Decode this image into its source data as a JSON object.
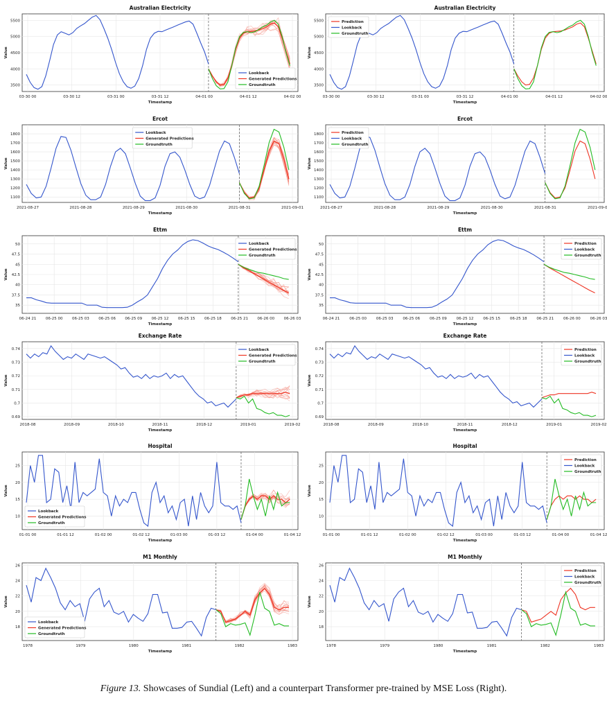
{
  "caption": {
    "label": "Figure 13.",
    "text": "Showcases of Sundial (Left) and a counterpart Transformer pre-trained by MSE Loss (Right)."
  },
  "colors": {
    "lookback": "#3355cc",
    "prediction": "#ee3322",
    "generated": "#f37a6c",
    "groundtruth": "#22bb22",
    "grid": "#e6e6e6"
  },
  "legend": {
    "lookback": "Lookback",
    "generated": "Generated Predictions",
    "groundtruth": "Groundtruth",
    "prediction": "Prediction"
  },
  "chart_data": [
    {
      "id": "ae",
      "title": "Australian Electricity",
      "xlabel": "Timestamp",
      "ylabel": "Value",
      "type": "line",
      "ylim": [
        3300,
        5700
      ],
      "yticks": [
        3500,
        4000,
        4500,
        5000,
        5500
      ],
      "xticks": [
        "03-30 00",
        "03-30 12",
        "03-31 00",
        "03-31 12",
        "04-01 00",
        "04-01 12",
        "04-02 00"
      ],
      "lookback": [
        3830,
        3580,
        3420,
        3370,
        3450,
        3780,
        4250,
        4750,
        5050,
        5150,
        5100,
        5050,
        5120,
        5250,
        5330,
        5400,
        5500,
        5600,
        5650,
        5520,
        5250,
        4950,
        4600,
        4200,
        3850,
        3600,
        3450,
        3400,
        3470,
        3700,
        4100,
        4600,
        4950,
        5100,
        5160,
        5150,
        5200,
        5250,
        5300,
        5350,
        5400,
        5450,
        5480,
        5380,
        5100,
        4800,
        4520,
        4150
      ],
      "forecast": [
        4000,
        3780,
        3600,
        3500,
        3520,
        3720,
        4100,
        4600,
        4950,
        5100,
        5150,
        5160,
        5170,
        5200,
        5250,
        5300,
        5380,
        5420,
        5300,
        4950,
        4550,
        4150
      ],
      "groundtruth": [
        4000,
        3700,
        3480,
        3380,
        3390,
        3600,
        4100,
        4650,
        5000,
        5130,
        5150,
        5120,
        5150,
        5220,
        5300,
        5350,
        5450,
        5500,
        5380,
        5000,
        4500,
        4100
      ],
      "legend_pos": "lower-right",
      "legend_pos_r": "upper-left"
    },
    {
      "id": "ercot",
      "title": "Ercot",
      "xlabel": "Timestamp",
      "ylabel": "Value",
      "type": "line",
      "ylim": [
        1040,
        1900
      ],
      "yticks": [
        1100,
        1200,
        1300,
        1400,
        1500,
        1600,
        1700,
        1800
      ],
      "xticks": [
        "2021-08-27",
        "2021-08-28",
        "2021-08-29",
        "2021-08-30",
        "2021-08-31",
        "2021-09-01"
      ],
      "lookback": [
        1240,
        1140,
        1090,
        1100,
        1220,
        1420,
        1640,
        1770,
        1760,
        1620,
        1430,
        1250,
        1120,
        1070,
        1070,
        1100,
        1240,
        1440,
        1600,
        1640,
        1580,
        1420,
        1250,
        1110,
        1060,
        1060,
        1090,
        1230,
        1440,
        1580,
        1600,
        1540,
        1400,
        1240,
        1110,
        1080,
        1100,
        1230,
        1420,
        1610,
        1720,
        1690,
        1540,
        1360
      ],
      "forecast": [
        1260,
        1150,
        1090,
        1100,
        1200,
        1400,
        1610,
        1720,
        1690,
        1520,
        1300
      ],
      "groundtruth": [
        1260,
        1140,
        1080,
        1090,
        1220,
        1450,
        1700,
        1850,
        1820,
        1650,
        1400
      ],
      "legend_pos": "upper-left-mid",
      "legend_pos_r": "upper-left"
    },
    {
      "id": "ettm",
      "title": "Ettm",
      "xlabel": "Timestamp",
      "ylabel": "Value",
      "type": "line",
      "ylim": [
        33,
        52
      ],
      "yticks": [
        35.0,
        37.5,
        40.0,
        42.5,
        45.0,
        47.5,
        50.0
      ],
      "xticks": [
        "06-24 21",
        "06-25 00",
        "06-25 03",
        "06-25 06",
        "06-25 09",
        "06-25 12",
        "06-25 15",
        "06-25 18",
        "06-25 21",
        "06-26 00",
        "06-26 03"
      ],
      "lookback": [
        36.8,
        36.8,
        36.3,
        36.0,
        35.6,
        35.5,
        35.5,
        35.5,
        35.5,
        35.5,
        35.5,
        35.5,
        35.0,
        35.0,
        35.0,
        34.5,
        34.4,
        34.4,
        34.4,
        34.4,
        34.5,
        35.0,
        35.8,
        36.5,
        37.5,
        39.5,
        41.5,
        44.0,
        46.0,
        47.5,
        48.5,
        49.8,
        50.6,
        51.0,
        50.8,
        50.2,
        49.5,
        49.0,
        48.6,
        48.0,
        47.3,
        46.5,
        45.6
      ],
      "forecast": [
        45.0,
        44.2,
        43.5,
        42.8,
        42.1,
        41.4,
        40.7,
        40.0,
        39.3,
        38.6,
        38.0
      ],
      "groundtruth": [
        45.0,
        44.3,
        43.8,
        43.4,
        43.0,
        42.8,
        42.5,
        42.2,
        41.9,
        41.5,
        41.3
      ],
      "legend_pos": "upper-right",
      "legend_pos_r": "upper-right"
    },
    {
      "id": "er",
      "title": "Exchange Rate",
      "xlabel": "Timestamp",
      "ylabel": "Value",
      "type": "line",
      "ylim": [
        0.688,
        0.745
      ],
      "yticks": [
        0.69,
        0.7,
        0.71,
        0.72,
        0.73,
        0.74
      ],
      "xticks": [
        "2018-08",
        "2018-09",
        "2018-10",
        "2018-11",
        "2018-12",
        "2019-01",
        "2019-02"
      ],
      "lookback": [
        0.736,
        0.733,
        0.736,
        0.734,
        0.737,
        0.736,
        0.742,
        0.738,
        0.735,
        0.732,
        0.734,
        0.733,
        0.736,
        0.734,
        0.732,
        0.736,
        0.735,
        0.734,
        0.733,
        0.734,
        0.732,
        0.73,
        0.728,
        0.725,
        0.726,
        0.722,
        0.719,
        0.72,
        0.718,
        0.721,
        0.718,
        0.72,
        0.719,
        0.72,
        0.722,
        0.718,
        0.721,
        0.719,
        0.72,
        0.716,
        0.712,
        0.708,
        0.705,
        0.703,
        0.7,
        0.701,
        0.698,
        0.699,
        0.7,
        0.697,
        0.7,
        0.703
      ],
      "forecast": [
        0.704,
        0.705,
        0.706,
        0.706,
        0.707,
        0.707,
        0.707,
        0.707,
        0.707,
        0.707,
        0.707,
        0.707,
        0.708,
        0.707
      ],
      "groundtruth": [
        0.704,
        0.703,
        0.705,
        0.7,
        0.703,
        0.696,
        0.695,
        0.693,
        0.692,
        0.693,
        0.691,
        0.691,
        0.69,
        0.691
      ],
      "legend_pos": "upper-right",
      "legend_pos_r": "upper-right"
    },
    {
      "id": "hosp",
      "title": "Hospital",
      "xlabel": "Timestamp",
      "ylabel": "Value",
      "type": "line",
      "ylim": [
        6,
        29
      ],
      "yticks": [
        10,
        15,
        20,
        25
      ],
      "xticks": [
        "01-01 00",
        "01-01 12",
        "01-02 00",
        "01-02 12",
        "01-03 00",
        "01-03 12",
        "01-04 00",
        "01-04 12"
      ],
      "lookback": [
        14,
        25,
        20,
        28,
        28,
        14,
        15,
        24,
        23,
        14,
        19,
        12,
        26,
        14,
        17,
        16,
        17,
        18,
        27,
        17,
        16,
        10,
        16,
        13,
        15,
        14,
        17,
        17,
        12,
        8,
        7,
        17,
        20,
        14,
        16,
        11,
        13,
        9,
        14,
        15,
        7,
        16,
        9,
        17,
        13,
        11,
        13,
        26,
        14,
        13,
        13,
        12,
        13,
        8
      ],
      "forecast": [
        9,
        13,
        15,
        16,
        15,
        16,
        16,
        15,
        16,
        15,
        15,
        14,
        15
      ],
      "groundtruth": [
        9,
        13,
        21,
        16,
        12,
        15,
        10,
        16,
        12,
        17,
        13,
        14,
        14
      ],
      "legend_pos": "lower-left",
      "legend_pos_r": "upper-right"
    },
    {
      "id": "m1",
      "title": "M1 Monthly",
      "xlabel": "Timestamp",
      "ylabel": "Value",
      "type": "line",
      "ylim": [
        16.2,
        26.3
      ],
      "yticks": [
        18,
        20,
        22,
        24,
        26
      ],
      "xticks": [
        "1978",
        "1979",
        "1980",
        "1981",
        "1982",
        "1983"
      ],
      "lookback": [
        23.4,
        21.2,
        24.4,
        24.0,
        25.6,
        24.4,
        23.0,
        21.1,
        20.2,
        21.4,
        20.6,
        21.0,
        18.7,
        21.6,
        22.5,
        23.0,
        20.6,
        21.4,
        19.9,
        19.6,
        20.0,
        18.6,
        19.6,
        19.1,
        18.7,
        19.7,
        22.2,
        22.2,
        19.8,
        19.9,
        17.8,
        17.8,
        17.9,
        18.6,
        18.7,
        17.8,
        16.8,
        19.2,
        20.4,
        20.2
      ],
      "forecast": [
        20.2,
        20.0,
        18.6,
        18.8,
        19.0,
        19.5,
        20.0,
        19.5,
        21.5,
        22.4,
        23.0,
        22.2,
        20.5,
        20.2,
        20.5,
        20.5
      ],
      "groundtruth": [
        20.2,
        19.7,
        18.0,
        18.4,
        18.2,
        18.3,
        18.5,
        16.9,
        19.5,
        22.5,
        20.4,
        20.0,
        18.2,
        18.4,
        18.1,
        18.1
      ],
      "legend_pos": "lower-left",
      "legend_pos_r": "upper-right"
    }
  ]
}
